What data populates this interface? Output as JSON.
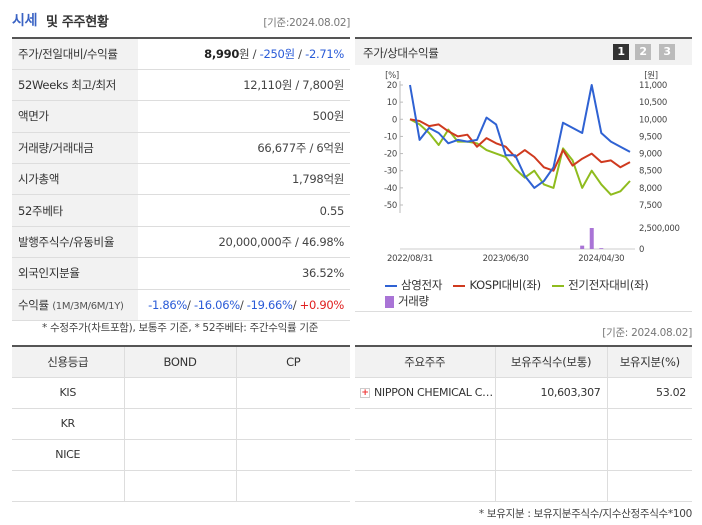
{
  "header": {
    "title_main": "시세",
    "title_sub": "및 주주현황",
    "date": "[기준:2024.08.02]"
  },
  "stats": [
    {
      "label": "주가/전일대비/수익률",
      "value_parts": [
        {
          "text": "8,990",
          "style": "bold"
        },
        {
          "text": "원 / ",
          "style": ""
        },
        {
          "text": "-250원",
          "style": "blue"
        },
        {
          "text": " / ",
          "style": ""
        },
        {
          "text": "-2.71%",
          "style": "blue"
        }
      ]
    },
    {
      "label": "52Weeks 최고/최저",
      "value": "12,110원 / 7,800원"
    },
    {
      "label": "액면가",
      "value": "500원"
    },
    {
      "label": "거래량/거래대금",
      "value": "66,677주 / 6억원"
    },
    {
      "label": "시가총액",
      "value": "1,798억원"
    },
    {
      "label": "52주베타",
      "value": "0.55"
    },
    {
      "label": "발행주식수/유동비율",
      "value": "20,000,000주 / 46.98%"
    },
    {
      "label": "외국인지분율",
      "value": "36.52%"
    },
    {
      "label": "수익률",
      "label_small": "(1M/3M/6M/1Y)",
      "value_parts": [
        {
          "text": "-1.86%",
          "style": "blue"
        },
        {
          "text": "/ ",
          "style": ""
        },
        {
          "text": "-16.06%",
          "style": "blue"
        },
        {
          "text": "/ ",
          "style": ""
        },
        {
          "text": "-19.66%",
          "style": "blue"
        },
        {
          "text": "/ ",
          "style": ""
        },
        {
          "text": "+0.90%",
          "style": "red"
        }
      ]
    }
  ],
  "note1": "* 수정주가(차트포함), 보통주 기준, * 52주베타: 주간수익률 기준",
  "chart_panel": {
    "title": "주가/상대수익률",
    "pages": [
      "1",
      "2",
      "3"
    ],
    "active_page": "1"
  },
  "chart_data": {
    "type": "line",
    "left_axis": {
      "unit": "[%]",
      "ticks": [
        20,
        10,
        0,
        -10,
        -20,
        -30,
        -40,
        -50
      ],
      "range": [
        -50,
        20
      ]
    },
    "right_axis": {
      "unit": "[원]",
      "ticks": [
        "11,000",
        "10,500",
        "10,000",
        "9,500",
        "9,000",
        "8,500",
        "8,000",
        "7,500"
      ],
      "range": [
        7500,
        11000
      ]
    },
    "volume_axis": {
      "ticks": [
        "2,500,000",
        "0"
      ],
      "max": 2500000
    },
    "x_ticks": [
      "2022/08/31",
      "2023/06/30",
      "2024/04/30"
    ],
    "x_tick_index": [
      0,
      10,
      20
    ],
    "series": [
      {
        "name": "삼영전자",
        "color": "#2f62d3",
        "values": [
          20,
          -12,
          -5,
          -8,
          -14,
          -12,
          -13,
          -12,
          1,
          -3,
          -21,
          -21,
          -33,
          -40,
          -36,
          -28,
          -2,
          -5,
          -8,
          20,
          -8,
          -13,
          -16,
          -19
        ]
      },
      {
        "name": "KOSPI대비(좌)",
        "color": "#cf3a1f",
        "values": [
          0,
          -1,
          -4,
          -3,
          -7,
          -10,
          -9,
          -16,
          -11,
          -14,
          -16,
          -22,
          -18,
          -22,
          -28,
          -30,
          -18,
          -27,
          -23,
          -20,
          -25,
          -24,
          -28,
          -25
        ]
      },
      {
        "name": "전기전자대비(좌)",
        "color": "#8fbc1e",
        "values": [
          0,
          -3,
          -8,
          -15,
          -6,
          -13,
          -13,
          -14,
          -18,
          -20,
          -22,
          -29,
          -34,
          -30,
          -38,
          -40,
          -17,
          -24,
          -40,
          -30,
          -38,
          -44,
          -42,
          -36
        ]
      }
    ],
    "volume": {
      "name": "거래량",
      "color": "#a974d6",
      "values": [
        0,
        0,
        0,
        0,
        0,
        0,
        0,
        0,
        0,
        0,
        0,
        0,
        0,
        0,
        0,
        0,
        0,
        0,
        400000,
        2500000,
        100000,
        0,
        0,
        0
      ]
    }
  },
  "date2": "[기준: 2024.08.02]",
  "credit_table": {
    "headers": [
      "신용등급",
      "BOND",
      "CP"
    ],
    "rows": [
      [
        "KIS",
        "",
        ""
      ],
      [
        "KR",
        "",
        ""
      ],
      [
        "NICE",
        "",
        ""
      ],
      [
        "",
        "",
        ""
      ]
    ]
  },
  "holder_table": {
    "headers": [
      "주요주주",
      "보유주식수(보통)",
      "보유지분(%)"
    ],
    "rows": [
      [
        "NIPPON CHEMICAL C…",
        "10,603,307",
        "53.02"
      ],
      [
        "",
        "",
        ""
      ],
      [
        "",
        "",
        ""
      ],
      [
        "",
        "",
        ""
      ]
    ]
  },
  "note2": "* 보유지분 : 보유지분주식수/지수산정주식수*100",
  "icons": {
    "expand": "plus-icon"
  }
}
